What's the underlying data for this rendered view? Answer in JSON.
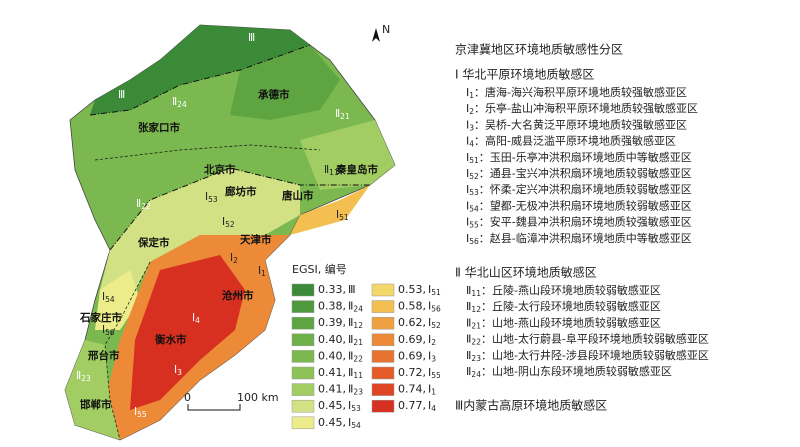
{
  "map": {
    "north": "N",
    "scale": {
      "start": "0",
      "end": "100 km"
    },
    "cities": [
      "承德市",
      "张家口市",
      "北京市",
      "秦皇岛市",
      "廊坊市",
      "唐山市",
      "保定市",
      "天津市",
      "沧州市",
      "石家庄市",
      "衡水市",
      "邢台市",
      "邯郸市"
    ],
    "zones": [
      {
        "code": "Ⅲ"
      },
      {
        "code": "Ⅲ"
      },
      {
        "code": "Ⅱ",
        "sub": "24"
      },
      {
        "code": "Ⅱ",
        "sub": "21"
      },
      {
        "code": "Ⅱ",
        "sub": "22"
      },
      {
        "code": "Ⅱ",
        "sub": "11"
      },
      {
        "code": "Ⅱ",
        "sub": "12"
      },
      {
        "code": "Ⅰ",
        "sub": "53"
      },
      {
        "code": "Ⅰ",
        "sub": "52"
      },
      {
        "code": "Ⅰ",
        "sub": "51"
      },
      {
        "code": "Ⅰ",
        "sub": "2"
      },
      {
        "code": "Ⅰ",
        "sub": "1"
      },
      {
        "code": "Ⅰ",
        "sub": "54"
      },
      {
        "code": "Ⅰ",
        "sub": "56"
      },
      {
        "code": "Ⅰ",
        "sub": "4"
      },
      {
        "code": "Ⅰ",
        "sub": "3"
      },
      {
        "code": "Ⅰ",
        "sub": "55"
      },
      {
        "code": "Ⅱ",
        "sub": "23"
      }
    ]
  },
  "legend": {
    "title": "EGSI, 编号",
    "items": [
      {
        "color": "#3b8a38",
        "egsi": "0.33,",
        "code": "Ⅲ"
      },
      {
        "color": "#4d993b",
        "egsi": "0.38,",
        "code": "Ⅱ",
        "sub": "24"
      },
      {
        "color": "#5ea542",
        "egsi": "0.39,",
        "code": "Ⅱ",
        "sub": "12"
      },
      {
        "color": "#6daf48",
        "egsi": "0.40,",
        "code": "Ⅱ",
        "sub": "21"
      },
      {
        "color": "#7bb84f",
        "egsi": "0.40,",
        "code": "Ⅱ",
        "sub": "22"
      },
      {
        "color": "#8cc258",
        "egsi": "0.41,",
        "code": "Ⅱ",
        "sub": "11"
      },
      {
        "color": "#a1cd63",
        "egsi": "0.41,",
        "code": "Ⅱ",
        "sub": "23"
      },
      {
        "color": "#d3e185",
        "egsi": "0.45,",
        "code": "Ⅰ",
        "sub": "53"
      },
      {
        "color": "#ecec8a",
        "egsi": "0.45,",
        "code": "Ⅰ",
        "sub": "54"
      },
      {
        "color": "#f4d76a",
        "egsi": "0.53,",
        "code": "Ⅰ",
        "sub": "51"
      },
      {
        "color": "#f3bf50",
        "egsi": "0.58,",
        "code": "Ⅰ",
        "sub": "56"
      },
      {
        "color": "#efa042",
        "egsi": "0.62,",
        "code": "Ⅰ",
        "sub": "52"
      },
      {
        "color": "#ec8a38",
        "egsi": "0.69,",
        "code": "Ⅰ",
        "sub": "2"
      },
      {
        "color": "#e8722f",
        "egsi": "0.69,",
        "code": "Ⅰ",
        "sub": "3"
      },
      {
        "color": "#e55b29",
        "egsi": "0.72,",
        "code": "Ⅰ",
        "sub": "55"
      },
      {
        "color": "#df4523",
        "egsi": "0.74,",
        "code": "Ⅰ",
        "sub": "1"
      },
      {
        "color": "#d73020",
        "egsi": "0.77,",
        "code": "Ⅰ",
        "sub": "4"
      }
    ]
  },
  "zoning": {
    "title": "京津冀地区环境地质敏感性分区",
    "sections": [
      {
        "title": "Ⅰ 华北平原环境地质敏感区",
        "items": [
          {
            "code": "Ⅰ",
            "sub": "1",
            "text": "：唐海-海兴海积平原环境地质较强敏感亚区"
          },
          {
            "code": "Ⅰ",
            "sub": "2",
            "text": "：乐亭-盐山冲海积平原环境地质较强敏感亚区"
          },
          {
            "code": "Ⅰ",
            "sub": "3",
            "text": "：吴桥-大名黄泛平原环境地质较强敏感亚区"
          },
          {
            "code": "Ⅰ",
            "sub": "4",
            "text": "：高阳-威县泛滥平原环境地质强敏感亚区"
          },
          {
            "code": "Ⅰ",
            "sub": "51",
            "text": "：玉田-乐亭冲洪积扇环境地质中等敏感亚区"
          },
          {
            "code": "Ⅰ",
            "sub": "52",
            "text": "：通县-宝兴冲洪积扇环境地质较弱敏感亚区"
          },
          {
            "code": "Ⅰ",
            "sub": "53",
            "text": "：怀柔-定兴冲洪积扇环境地质较弱敏感亚区"
          },
          {
            "code": "Ⅰ",
            "sub": "54",
            "text": "：望都-无极冲洪积扇环境地质较弱敏感亚区"
          },
          {
            "code": "Ⅰ",
            "sub": "55",
            "text": "：安平-魏县冲洪积扇环境地质较强敏感亚区"
          },
          {
            "code": "Ⅰ",
            "sub": "56",
            "text": "：赵县-临漳冲洪积扇环境地质中等敏感亚区"
          }
        ]
      },
      {
        "title": "Ⅱ 华北山区环境地质敏感区",
        "items": [
          {
            "code": "Ⅱ",
            "sub": "11",
            "text": "：丘陵-燕山段环境地质较弱敏感亚区"
          },
          {
            "code": "Ⅱ",
            "sub": "12",
            "text": "：丘陵-太行段环境地质较弱敏感亚区"
          },
          {
            "code": "Ⅱ",
            "sub": "21",
            "text": "：山地-燕山段环境地质较弱敏感亚区"
          },
          {
            "code": "Ⅱ",
            "sub": "22",
            "text": "：山地-太行蔚县-阜平段环境地质较弱敏感亚区"
          },
          {
            "code": "Ⅱ",
            "sub": "23",
            "text": "：山地-太行井陉-涉县段环境地质较弱敏感亚区"
          },
          {
            "code": "Ⅱ",
            "sub": "24",
            "text": "：山地-阴山东段环境地质较弱敏感亚区"
          }
        ]
      },
      {
        "title": "Ⅲ内蒙古高原环境地质敏感区"
      }
    ]
  }
}
